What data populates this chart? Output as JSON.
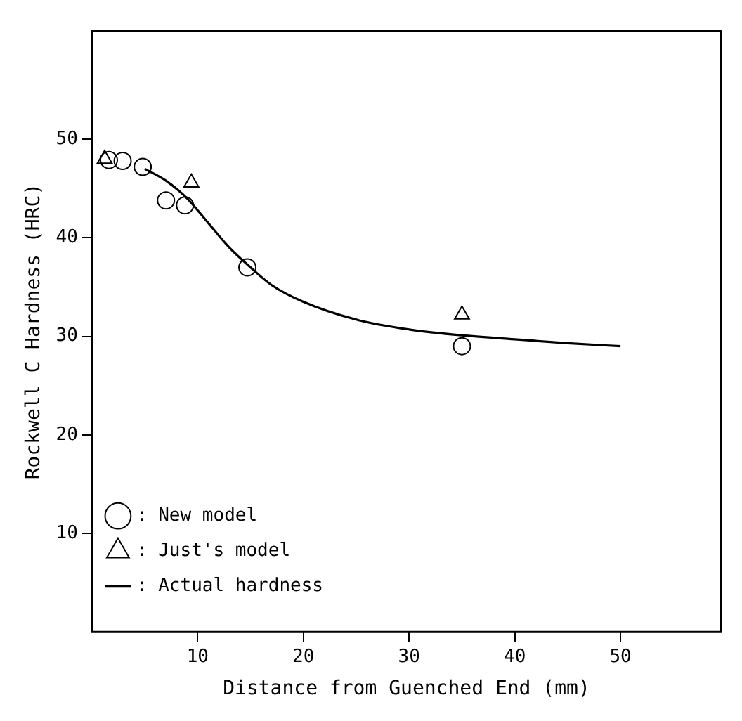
{
  "chart_data": {
    "type": "scatter",
    "xlabel": "Distance from Guenched End (mm)",
    "ylabel": "Rockwell C Hardness (HRC)",
    "xlim": [
      0,
      59.5
    ],
    "ylim": [
      0,
      61
    ],
    "xticks": [
      10,
      20,
      30,
      40,
      50
    ],
    "yticks": [
      10,
      20,
      30,
      40,
      50
    ],
    "grid": false,
    "legend": "bottom left",
    "series": [
      {
        "name": ": New model",
        "marker": "circle",
        "color": "#000000",
        "x": [
          1.6,
          2.9,
          4.8,
          7,
          8.8,
          14.7,
          35
        ],
        "values": [
          47.9,
          47.8,
          47.2,
          43.8,
          43.3,
          37,
          29
        ]
      },
      {
        "name": ": Just's model",
        "marker": "triangle",
        "color": "#000000",
        "x": [
          1.2,
          9.4,
          35
        ],
        "values": [
          48,
          45.6,
          32.2
        ]
      },
      {
        "name": ": Actual hardness",
        "type": "line",
        "marker": "none",
        "color": "#000000",
        "x": [
          5,
          7,
          9,
          11,
          13,
          15,
          17,
          20,
          25,
          30,
          35,
          40,
          45,
          50
        ],
        "values": [
          47.0,
          45.8,
          44,
          41.5,
          39,
          37,
          35.2,
          33.5,
          31.7,
          30.7,
          30.1,
          29.7,
          29.3,
          29.0
        ]
      }
    ]
  }
}
